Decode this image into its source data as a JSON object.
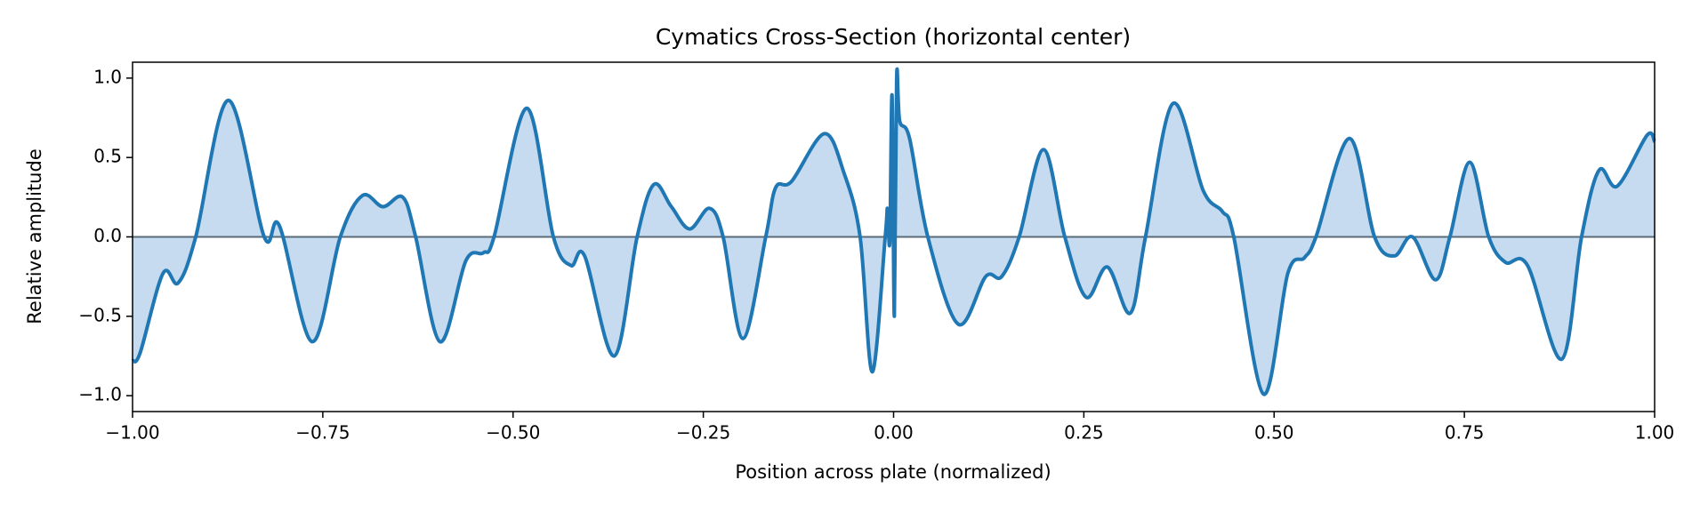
{
  "chart_data": {
    "type": "line",
    "title": "Cymatics Cross-Section (horizontal center)",
    "x_label": "Position across plate (normalized)",
    "y_label": "Relative amplitude",
    "color": "#1f77b4",
    "fill_color": "#c6dbef",
    "baseline_color": "#5a6b7a",
    "xlim": [
      -1,
      1
    ],
    "ylim": [
      -1.1,
      1.1
    ],
    "xticks": [
      {
        "value": -1,
        "label": "−1.00"
      },
      {
        "value": -0.75,
        "label": "−0.75"
      },
      {
        "value": -0.5,
        "label": "−0.50"
      },
      {
        "value": -0.25,
        "label": "−0.25"
      },
      {
        "value": 0,
        "label": "0.00"
      },
      {
        "value": 0.25,
        "label": "0.25"
      },
      {
        "value": 0.5,
        "label": "0.50"
      },
      {
        "value": 0.75,
        "label": "0.75"
      },
      {
        "value": 1,
        "label": "1.00"
      }
    ],
    "yticks": [
      {
        "value": -1,
        "label": "−1.0"
      },
      {
        "value": -0.5,
        "label": "−0.5"
      },
      {
        "value": 0,
        "label": "0.0"
      },
      {
        "value": 0.5,
        "label": "0.5"
      },
      {
        "value": 1,
        "label": "1.0"
      }
    ],
    "x": [
      -1,
      -0.99,
      -0.96,
      -0.94,
      -0.917,
      -0.874,
      -0.827,
      -0.807,
      -0.764,
      -0.727,
      -0.698,
      -0.671,
      -0.645,
      -0.628,
      -0.596,
      -0.562,
      -0.539,
      -0.525,
      -0.482,
      -0.447,
      -0.424,
      -0.406,
      -0.367,
      -0.337,
      -0.315,
      -0.292,
      -0.268,
      -0.242,
      -0.224,
      -0.198,
      -0.168,
      -0.155,
      -0.134,
      -0.091,
      -0.065,
      -0.044,
      -0.028,
      -0.011,
      -0.008,
      -0.005,
      -0.002,
      0.001,
      0.004,
      0.008,
      0.021,
      0.045,
      0.085,
      0.121,
      0.142,
      0.165,
      0.197,
      0.225,
      0.253,
      0.281,
      0.311,
      0.331,
      0.367,
      0.407,
      0.432,
      0.447,
      0.486,
      0.518,
      0.54,
      0.555,
      0.599,
      0.632,
      0.658,
      0.682,
      0.712,
      0.731,
      0.757,
      0.782,
      0.804,
      0.833,
      0.878,
      0.904,
      0.927,
      0.951,
      0.99,
      1
    ],
    "series": [
      {
        "values": [
          -0.78,
          -0.73,
          -0.23,
          -0.29,
          0,
          0.86,
          0,
          0.07,
          -0.66,
          0,
          0.26,
          0.19,
          0.25,
          0,
          -0.66,
          -0.15,
          -0.1,
          0,
          0.81,
          0,
          -0.18,
          -0.12,
          -0.75,
          0,
          0.33,
          0.19,
          0.05,
          0.18,
          0,
          -0.64,
          0,
          0.31,
          0.35,
          0.65,
          0.4,
          0,
          -0.85,
          0,
          0.18,
          -0.03,
          0.89,
          -0.5,
          1,
          0.73,
          0.62,
          0,
          -0.55,
          -0.25,
          -0.25,
          0,
          0.55,
          0,
          -0.38,
          -0.19,
          -0.48,
          0,
          0.84,
          0.29,
          0.16,
          0,
          -0.99,
          -0.23,
          -0.13,
          0,
          0.62,
          0,
          -0.12,
          0,
          -0.27,
          0,
          0.47,
          0,
          -0.16,
          -0.18,
          -0.77,
          0,
          0.42,
          0.32,
          0.64,
          0.6
        ]
      }
    ]
  }
}
